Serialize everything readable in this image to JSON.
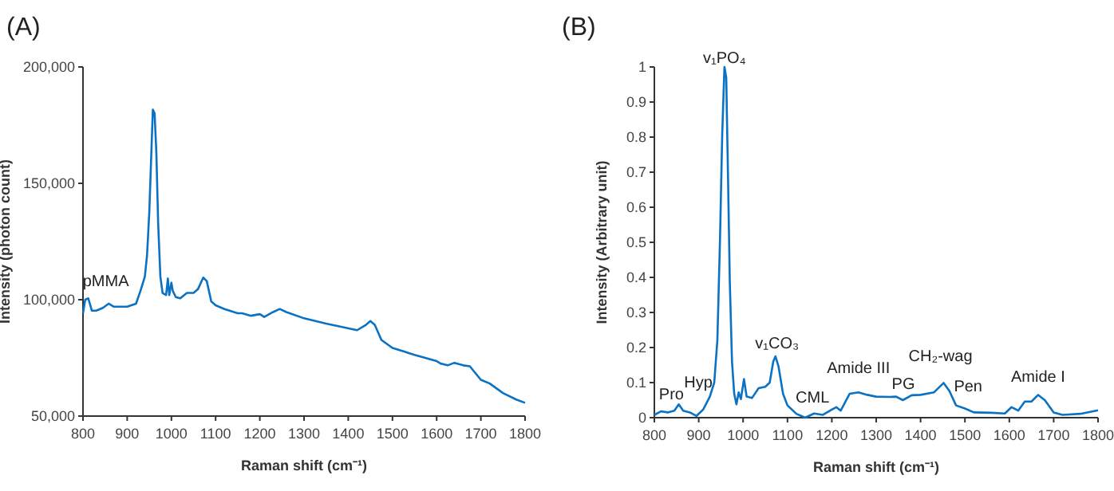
{
  "chart_data": [
    {
      "type": "line",
      "title": "(A)",
      "xlabel": "Raman shift (cm⁻¹)",
      "ylabel": "Intensity (photon count)",
      "xlim": [
        800,
        1800
      ],
      "xticks": [
        800,
        900,
        1000,
        1100,
        1200,
        1300,
        1400,
        1500,
        1600,
        1700,
        1800
      ],
      "ylim": [
        50000,
        200000
      ],
      "yticks": [
        {
          "value": 50000,
          "label": "50,000"
        },
        {
          "value": 100000,
          "label": "100,000"
        },
        {
          "value": 150000,
          "label": "150,000"
        },
        {
          "value": 200000,
          "label": "200,000"
        }
      ],
      "grid": false,
      "marker": "none",
      "line_style": "solid",
      "annotations": [
        {
          "text": "pMMA",
          "x": 812,
          "y": 100600
        }
      ],
      "series": [
        {
          "color": "#0a72c4",
          "x": [
            800,
            805,
            812,
            820,
            830,
            845,
            858,
            870,
            900,
            920,
            930,
            940,
            945,
            950,
            955,
            958,
            962,
            966,
            970,
            975,
            980,
            988,
            992,
            995,
            1000,
            1003,
            1010,
            1020,
            1035,
            1050,
            1060,
            1072,
            1080,
            1090,
            1100,
            1120,
            1150,
            1160,
            1180,
            1200,
            1210,
            1230,
            1245,
            1260,
            1300,
            1350,
            1380,
            1420,
            1440,
            1450,
            1460,
            1475,
            1500,
            1550,
            1600,
            1610,
            1625,
            1640,
            1660,
            1675,
            1700,
            1720,
            1750,
            1780,
            1800
          ],
          "values": [
            94200,
            100000,
            100600,
            95300,
            95300,
            96500,
            98300,
            97000,
            97000,
            98300,
            103800,
            110000,
            119400,
            137700,
            165200,
            181700,
            180000,
            162800,
            133000,
            110000,
            102900,
            102000,
            109100,
            102000,
            107300,
            103800,
            101100,
            100600,
            102900,
            102900,
            104500,
            109500,
            108000,
            99300,
            97600,
            96000,
            94200,
            94200,
            93100,
            93800,
            92600,
            94700,
            96000,
            94700,
            92000,
            89700,
            88500,
            86900,
            89200,
            90800,
            89200,
            82700,
            79300,
            76300,
            73600,
            72500,
            71800,
            72900,
            71800,
            71400,
            65600,
            64000,
            59900,
            57100,
            55700
          ]
        }
      ]
    },
    {
      "type": "line",
      "title": "(B)",
      "xlabel": "Raman shift (cm⁻¹)",
      "ylabel": "Intensity (Arbitrary unit)",
      "xlim": [
        800,
        1800
      ],
      "xticks": [
        800,
        900,
        1000,
        1100,
        1200,
        1300,
        1400,
        1500,
        1600,
        1700,
        1800
      ],
      "ylim": [
        0,
        1
      ],
      "yticks": [
        0,
        0.1,
        0.2,
        0.3,
        0.4,
        0.5,
        0.6,
        0.7,
        0.8,
        0.9,
        1
      ],
      "grid": false,
      "marker": "none",
      "line_style": "solid",
      "annotations": [
        {
          "text": "Pro",
          "x": 855,
          "y": 0.038
        },
        {
          "text": "Hyp",
          "x": 935,
          "y": 0.1
        },
        {
          "text": "v₁PO₄",
          "x": 958,
          "y": 1.0
        },
        {
          "text": "v₁CO₃",
          "x": 1073,
          "y": 0.175
        },
        {
          "text": "CML",
          "x": 1160,
          "y": 0.012
        },
        {
          "text": "Amide III",
          "x": 1260,
          "y": 0.072
        },
        {
          "text": "PG",
          "x": 1345,
          "y": 0.06
        },
        {
          "text": "CH₂-wag",
          "x": 1452,
          "y": 0.099
        },
        {
          "text": "Pen",
          "x": 1500,
          "y": 0.026
        },
        {
          "text": "Amide I",
          "x": 1665,
          "y": 0.065
        }
      ],
      "series": [
        {
          "color": "#0a72c4",
          "x": [
            800,
            815,
            830,
            845,
            855,
            865,
            880,
            895,
            910,
            925,
            935,
            942,
            948,
            953,
            958,
            962,
            966,
            970,
            975,
            980,
            985,
            990,
            995,
            1002,
            1008,
            1020,
            1035,
            1050,
            1060,
            1068,
            1073,
            1080,
            1090,
            1100,
            1120,
            1140,
            1160,
            1180,
            1200,
            1210,
            1220,
            1240,
            1260,
            1280,
            1300,
            1330,
            1345,
            1360,
            1380,
            1400,
            1430,
            1452,
            1465,
            1480,
            1500,
            1520,
            1560,
            1590,
            1605,
            1620,
            1635,
            1650,
            1665,
            1680,
            1700,
            1720,
            1760,
            1800
          ],
          "values": [
            0.008,
            0.018,
            0.015,
            0.02,
            0.038,
            0.02,
            0.015,
            0.005,
            0.023,
            0.06,
            0.1,
            0.22,
            0.51,
            0.81,
            1.0,
            0.97,
            0.69,
            0.39,
            0.16,
            0.068,
            0.038,
            0.072,
            0.053,
            0.11,
            0.06,
            0.056,
            0.084,
            0.088,
            0.1,
            0.16,
            0.175,
            0.145,
            0.068,
            0.035,
            0.011,
            0,
            0.012,
            0.008,
            0.023,
            0.03,
            0.02,
            0.068,
            0.072,
            0.065,
            0.06,
            0.059,
            0.06,
            0.05,
            0.064,
            0.065,
            0.072,
            0.099,
            0.076,
            0.035,
            0.026,
            0.015,
            0.014,
            0.012,
            0.03,
            0.02,
            0.046,
            0.046,
            0.065,
            0.05,
            0.015,
            0.008,
            0.011,
            0.021
          ]
        }
      ]
    }
  ]
}
